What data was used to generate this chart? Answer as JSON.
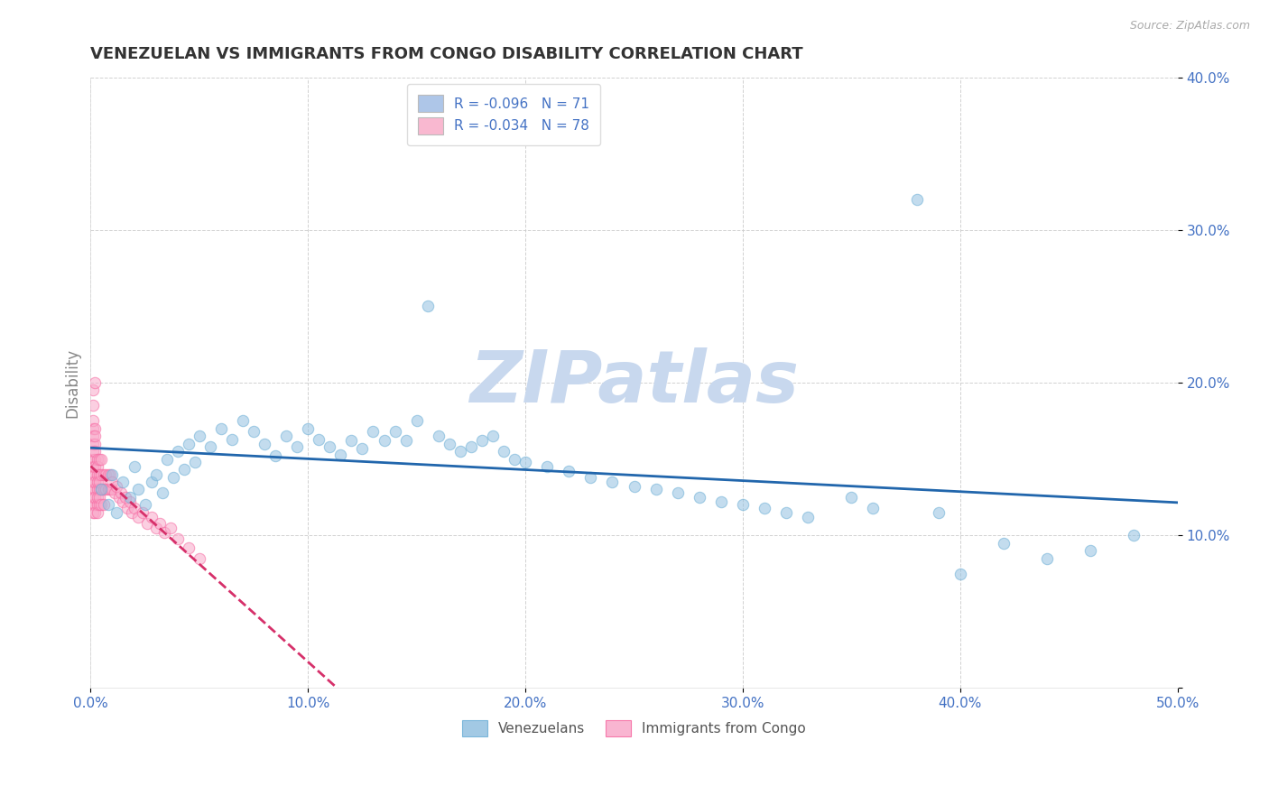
{
  "title": "VENEZUELAN VS IMMIGRANTS FROM CONGO DISABILITY CORRELATION CHART",
  "source": "Source: ZipAtlas.com",
  "ylabel": "Disability",
  "xlim": [
    0.0,
    0.5
  ],
  "ylim": [
    0.0,
    0.4
  ],
  "xticks": [
    0.0,
    0.1,
    0.2,
    0.3,
    0.4,
    0.5
  ],
  "yticks": [
    0.0,
    0.1,
    0.2,
    0.3,
    0.4
  ],
  "xtick_labels": [
    "0.0%",
    "10.0%",
    "20.0%",
    "30.0%",
    "40.0%",
    "50.0%"
  ],
  "ytick_labels_right": [
    "",
    "10.0%",
    "20.0%",
    "30.0%",
    "40.0%"
  ],
  "watermark": "ZIPatlas",
  "series": [
    {
      "name": "Venezuelans",
      "color": "#92c0e0",
      "edge_color": "#6baed6",
      "R": -0.096,
      "N": 71,
      "trend_color": "#2166ac",
      "trend_style": "solid",
      "x": [
        0.005,
        0.008,
        0.01,
        0.012,
        0.015,
        0.018,
        0.02,
        0.022,
        0.025,
        0.028,
        0.03,
        0.033,
        0.035,
        0.038,
        0.04,
        0.043,
        0.045,
        0.048,
        0.05,
        0.055,
        0.06,
        0.065,
        0.07,
        0.075,
        0.08,
        0.085,
        0.09,
        0.095,
        0.1,
        0.105,
        0.11,
        0.115,
        0.12,
        0.125,
        0.13,
        0.135,
        0.14,
        0.145,
        0.15,
        0.155,
        0.16,
        0.165,
        0.17,
        0.175,
        0.18,
        0.185,
        0.19,
        0.195,
        0.2,
        0.21,
        0.22,
        0.23,
        0.24,
        0.25,
        0.26,
        0.27,
        0.28,
        0.29,
        0.3,
        0.31,
        0.32,
        0.33,
        0.35,
        0.36,
        0.38,
        0.39,
        0.4,
        0.42,
        0.44,
        0.46,
        0.48
      ],
      "y": [
        0.13,
        0.12,
        0.14,
        0.115,
        0.135,
        0.125,
        0.145,
        0.13,
        0.12,
        0.135,
        0.14,
        0.128,
        0.15,
        0.138,
        0.155,
        0.143,
        0.16,
        0.148,
        0.165,
        0.158,
        0.17,
        0.163,
        0.175,
        0.168,
        0.16,
        0.152,
        0.165,
        0.158,
        0.17,
        0.163,
        0.158,
        0.153,
        0.162,
        0.157,
        0.168,
        0.162,
        0.168,
        0.162,
        0.175,
        0.25,
        0.165,
        0.16,
        0.155,
        0.158,
        0.162,
        0.165,
        0.155,
        0.15,
        0.148,
        0.145,
        0.142,
        0.138,
        0.135,
        0.132,
        0.13,
        0.128,
        0.125,
        0.122,
        0.12,
        0.118,
        0.115,
        0.112,
        0.125,
        0.118,
        0.32,
        0.115,
        0.075,
        0.095,
        0.085,
        0.09,
        0.1
      ]
    },
    {
      "name": "Immigrants from Congo",
      "color": "#f9a8c9",
      "edge_color": "#f768a1",
      "R": -0.034,
      "N": 78,
      "trend_color": "#d6306a",
      "trend_style": "dashed",
      "x": [
        0.001,
        0.001,
        0.001,
        0.001,
        0.001,
        0.001,
        0.001,
        0.001,
        0.001,
        0.001,
        0.001,
        0.001,
        0.001,
        0.001,
        0.001,
        0.002,
        0.002,
        0.002,
        0.002,
        0.002,
        0.002,
        0.002,
        0.002,
        0.002,
        0.002,
        0.002,
        0.002,
        0.002,
        0.003,
        0.003,
        0.003,
        0.003,
        0.003,
        0.003,
        0.003,
        0.003,
        0.004,
        0.004,
        0.004,
        0.004,
        0.004,
        0.004,
        0.005,
        0.005,
        0.005,
        0.005,
        0.006,
        0.006,
        0.006,
        0.007,
        0.007,
        0.008,
        0.008,
        0.009,
        0.009,
        0.01,
        0.01,
        0.011,
        0.012,
        0.013,
        0.014,
        0.015,
        0.016,
        0.017,
        0.018,
        0.019,
        0.02,
        0.022,
        0.024,
        0.026,
        0.028,
        0.03,
        0.032,
        0.034,
        0.037,
        0.04,
        0.045,
        0.05
      ],
      "y": [
        0.13,
        0.14,
        0.12,
        0.15,
        0.135,
        0.125,
        0.145,
        0.115,
        0.16,
        0.17,
        0.155,
        0.165,
        0.175,
        0.185,
        0.195,
        0.13,
        0.14,
        0.12,
        0.15,
        0.135,
        0.125,
        0.145,
        0.115,
        0.16,
        0.17,
        0.155,
        0.165,
        0.2,
        0.13,
        0.14,
        0.12,
        0.15,
        0.135,
        0.125,
        0.145,
        0.115,
        0.13,
        0.14,
        0.12,
        0.15,
        0.135,
        0.125,
        0.13,
        0.14,
        0.12,
        0.15,
        0.13,
        0.14,
        0.12,
        0.13,
        0.14,
        0.13,
        0.14,
        0.13,
        0.14,
        0.13,
        0.135,
        0.128,
        0.132,
        0.125,
        0.128,
        0.122,
        0.125,
        0.118,
        0.122,
        0.115,
        0.118,
        0.112,
        0.115,
        0.108,
        0.112,
        0.105,
        0.108,
        0.102,
        0.105,
        0.098,
        0.092,
        0.085
      ]
    }
  ],
  "background_color": "#ffffff",
  "grid_color": "#cccccc",
  "title_color": "#333333",
  "title_fontsize": 13,
  "axis_label_color": "#888888",
  "tick_color": "#4472c4",
  "legend_box_color_1": "#aec6e8",
  "legend_box_color_2": "#f9b8d0",
  "legend_text_color": "#4472c4",
  "watermark_color_zip": "#c8d8ee",
  "watermark_color_atlas": "#d4cce8",
  "scatter_alpha": 0.55,
  "scatter_size": 80
}
